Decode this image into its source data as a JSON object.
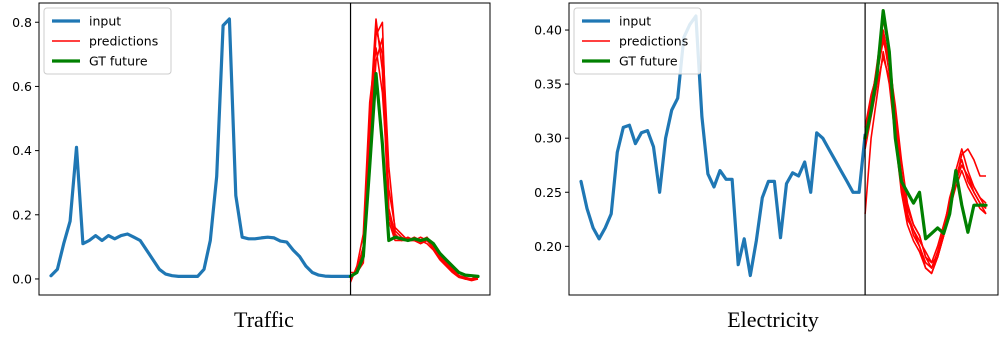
{
  "chart_data": [
    {
      "type": "line",
      "title": "Traffic",
      "ylim": [
        -0.05,
        0.86
      ],
      "yticks": [
        0.0,
        0.2,
        0.4,
        0.6,
        0.8
      ],
      "ytick_labels": [
        "0.0",
        "0.2",
        "0.4",
        "0.6",
        "0.8"
      ],
      "x_total": 68,
      "forecast_start": 47,
      "legend": {
        "placement": "upper-left",
        "entries": [
          "input",
          "predictions",
          "GT future"
        ]
      },
      "colors": {
        "input": "#1f77b4",
        "predictions": "#ff0000",
        "gt": "#008000"
      },
      "input": {
        "name": "input",
        "x": [
          0,
          1,
          2,
          3,
          4,
          5,
          6,
          7,
          8,
          9,
          10,
          11,
          12,
          13,
          14,
          15,
          16,
          17,
          18,
          19,
          20,
          21,
          22,
          23,
          24,
          25,
          26,
          27,
          28,
          29,
          30,
          31,
          32,
          33,
          34,
          35,
          36,
          37,
          38,
          39,
          40,
          41,
          42,
          43,
          44,
          45,
          46,
          47
        ],
        "values": [
          0.01,
          0.03,
          0.11,
          0.18,
          0.41,
          0.11,
          0.12,
          0.135,
          0.12,
          0.135,
          0.125,
          0.135,
          0.14,
          0.13,
          0.12,
          0.09,
          0.06,
          0.03,
          0.015,
          0.01,
          0.008,
          0.008,
          0.008,
          0.008,
          0.03,
          0.12,
          0.32,
          0.79,
          0.81,
          0.26,
          0.13,
          0.125,
          0.125,
          0.128,
          0.13,
          0.128,
          0.118,
          0.115,
          0.09,
          0.07,
          0.04,
          0.02,
          0.012,
          0.009,
          0.008,
          0.008,
          0.008,
          0.008
        ]
      },
      "gt_future": {
        "name": "GT future",
        "x": [
          47,
          48,
          49,
          50,
          51,
          52,
          53,
          54,
          55,
          56,
          57,
          58,
          59,
          60,
          61,
          62,
          63,
          64,
          65,
          66,
          67
        ],
        "values": [
          0.008,
          0.02,
          0.07,
          0.35,
          0.64,
          0.42,
          0.12,
          0.13,
          0.125,
          0.12,
          0.125,
          0.12,
          0.125,
          0.11,
          0.08,
          0.06,
          0.04,
          0.02,
          0.012,
          0.01,
          0.008
        ]
      },
      "predictions": [
        {
          "name": "predictions",
          "x": [
            47,
            48,
            49,
            50,
            51,
            52,
            53,
            54,
            55,
            56,
            57,
            58,
            59,
            60,
            61,
            62,
            63,
            64,
            65,
            66,
            67
          ],
          "values": [
            0.01,
            0.02,
            0.1,
            0.5,
            0.81,
            0.65,
            0.18,
            0.12,
            0.12,
            0.13,
            0.12,
            0.11,
            0.12,
            0.1,
            0.07,
            0.05,
            0.03,
            0.01,
            0.0,
            0.0,
            0.0
          ]
        },
        {
          "name": "predictions",
          "x": [
            47,
            48,
            49,
            50,
            51,
            52,
            53,
            54,
            55,
            56,
            57,
            58,
            59,
            60,
            61,
            62,
            63,
            64,
            65,
            66,
            67
          ],
          "values": [
            0.0,
            0.03,
            0.08,
            0.42,
            0.76,
            0.8,
            0.22,
            0.14,
            0.12,
            0.12,
            0.13,
            0.12,
            0.11,
            0.09,
            0.06,
            0.04,
            0.02,
            0.005,
            0.0,
            0.0,
            0.0
          ]
        },
        {
          "name": "predictions",
          "x": [
            47,
            48,
            49,
            50,
            51,
            52,
            53,
            54,
            55,
            56,
            57,
            58,
            59,
            60,
            61,
            62,
            63,
            64,
            65,
            66,
            67
          ],
          "values": [
            -0.01,
            0.04,
            0.14,
            0.55,
            0.72,
            0.58,
            0.28,
            0.16,
            0.14,
            0.12,
            0.12,
            0.13,
            0.12,
            0.11,
            0.08,
            0.05,
            0.035,
            0.01,
            0.005,
            0.0,
            0.01
          ]
        },
        {
          "name": "predictions",
          "x": [
            47,
            48,
            49,
            50,
            51,
            52,
            53,
            54,
            55,
            56,
            57,
            58,
            59,
            60,
            61,
            62,
            63,
            64,
            65,
            66,
            67
          ],
          "values": [
            0.02,
            0.02,
            0.05,
            0.38,
            0.68,
            0.75,
            0.35,
            0.15,
            0.13,
            0.12,
            0.12,
            0.12,
            0.13,
            0.1,
            0.07,
            0.045,
            0.025,
            0.01,
            0.0,
            -0.005,
            0.0
          ]
        },
        {
          "name": "predictions",
          "x": [
            47,
            48,
            49,
            50,
            51,
            52,
            53,
            54,
            55,
            56,
            57,
            58,
            59,
            60,
            61,
            62,
            63,
            64,
            65,
            66,
            67
          ],
          "values": [
            0.0,
            0.03,
            0.1,
            0.46,
            0.78,
            0.7,
            0.2,
            0.13,
            0.12,
            0.125,
            0.125,
            0.115,
            0.12,
            0.095,
            0.065,
            0.045,
            0.03,
            0.008,
            0.0,
            0.0,
            0.005
          ]
        }
      ]
    },
    {
      "type": "line",
      "title": "Electricity",
      "ylim": [
        0.155,
        0.425
      ],
      "yticks": [
        0.2,
        0.25,
        0.3,
        0.35,
        0.4
      ],
      "ytick_labels": [
        "0.20",
        "0.25",
        "0.30",
        "0.35",
        "0.40"
      ],
      "x_total": 68,
      "forecast_start": 47,
      "legend": {
        "placement": "upper-left",
        "entries": [
          "input",
          "predictions",
          "GT future"
        ]
      },
      "colors": {
        "input": "#1f77b4",
        "predictions": "#ff0000",
        "gt": "#008000"
      },
      "input": {
        "name": "input",
        "x": [
          0,
          1,
          2,
          3,
          4,
          5,
          6,
          7,
          8,
          9,
          10,
          11,
          12,
          13,
          14,
          15,
          16,
          17,
          18,
          19,
          20,
          21,
          22,
          23,
          24,
          25,
          26,
          27,
          28,
          29,
          30,
          31,
          32,
          33,
          34,
          35,
          36,
          37,
          38,
          39,
          40,
          41,
          42,
          43,
          44,
          45,
          46,
          47
        ],
        "values": [
          0.26,
          0.235,
          0.217,
          0.207,
          0.217,
          0.23,
          0.287,
          0.31,
          0.312,
          0.295,
          0.305,
          0.307,
          0.292,
          0.25,
          0.3,
          0.326,
          0.337,
          0.393,
          0.405,
          0.413,
          0.32,
          0.267,
          0.255,
          0.27,
          0.262,
          0.262,
          0.183,
          0.207,
          0.173,
          0.205,
          0.245,
          0.26,
          0.26,
          0.208,
          0.258,
          0.268,
          0.265,
          0.278,
          0.25,
          0.305,
          0.3,
          0.29,
          0.28,
          0.27,
          0.26,
          0.25,
          0.25,
          0.303
        ]
      },
      "gt_future": {
        "name": "GT future",
        "x": [
          47,
          48,
          49,
          50,
          51,
          52,
          53,
          54,
          55,
          56,
          57,
          58,
          59,
          60,
          61,
          62,
          63,
          64,
          65,
          66,
          67
        ],
        "values": [
          0.3,
          0.325,
          0.36,
          0.418,
          0.38,
          0.3,
          0.26,
          0.25,
          0.24,
          0.25,
          0.207,
          0.212,
          0.217,
          0.212,
          0.23,
          0.27,
          0.238,
          0.213,
          0.238,
          0.238,
          0.238
        ]
      },
      "predictions": [
        {
          "name": "predictions",
          "x": [
            47,
            48,
            49,
            50,
            51,
            52,
            53,
            54,
            55,
            56,
            57,
            58,
            59,
            60,
            61,
            62,
            63,
            64,
            65,
            66,
            67
          ],
          "values": [
            0.23,
            0.3,
            0.34,
            0.38,
            0.35,
            0.3,
            0.25,
            0.22,
            0.205,
            0.195,
            0.18,
            0.175,
            0.19,
            0.21,
            0.24,
            0.26,
            0.285,
            0.29,
            0.28,
            0.265,
            0.265
          ]
        },
        {
          "name": "predictions",
          "x": [
            47,
            48,
            49,
            50,
            51,
            52,
            53,
            54,
            55,
            56,
            57,
            58,
            59,
            60,
            61,
            62,
            63,
            64,
            65,
            66,
            67
          ],
          "values": [
            0.3,
            0.33,
            0.37,
            0.41,
            0.38,
            0.32,
            0.27,
            0.23,
            0.21,
            0.2,
            0.18,
            0.175,
            0.19,
            0.215,
            0.24,
            0.27,
            0.29,
            0.27,
            0.255,
            0.245,
            0.24
          ]
        },
        {
          "name": "predictions",
          "x": [
            47,
            48,
            49,
            50,
            51,
            52,
            53,
            54,
            55,
            56,
            57,
            58,
            59,
            60,
            61,
            62,
            63,
            64,
            65,
            66,
            67
          ],
          "values": [
            0.31,
            0.34,
            0.36,
            0.39,
            0.37,
            0.33,
            0.28,
            0.24,
            0.22,
            0.21,
            0.19,
            0.185,
            0.2,
            0.22,
            0.24,
            0.26,
            0.275,
            0.265,
            0.255,
            0.245,
            0.235
          ]
        },
        {
          "name": "predictions",
          "x": [
            47,
            48,
            49,
            50,
            51,
            52,
            53,
            54,
            55,
            56,
            57,
            58,
            59,
            60,
            61,
            62,
            63,
            64,
            65,
            66,
            67
          ],
          "values": [
            0.29,
            0.32,
            0.35,
            0.375,
            0.355,
            0.31,
            0.26,
            0.225,
            0.215,
            0.205,
            0.195,
            0.185,
            0.19,
            0.21,
            0.235,
            0.255,
            0.27,
            0.255,
            0.245,
            0.235,
            0.23
          ]
        },
        {
          "name": "predictions",
          "x": [
            47,
            48,
            49,
            50,
            51,
            52,
            53,
            54,
            55,
            56,
            57,
            58,
            59,
            60,
            61,
            62,
            63,
            64,
            65,
            66,
            67
          ],
          "values": [
            0.3,
            0.33,
            0.36,
            0.395,
            0.36,
            0.305,
            0.255,
            0.23,
            0.215,
            0.2,
            0.185,
            0.18,
            0.195,
            0.215,
            0.245,
            0.265,
            0.28,
            0.26,
            0.25,
            0.24,
            0.235
          ]
        },
        {
          "name": "predictions",
          "x": [
            47,
            48,
            49,
            50,
            51,
            52,
            53,
            54,
            55,
            56,
            57,
            58,
            59,
            60,
            61,
            62,
            63,
            64,
            65,
            66,
            67
          ],
          "values": [
            0.305,
            0.335,
            0.365,
            0.4,
            0.37,
            0.32,
            0.265,
            0.235,
            0.22,
            0.21,
            0.19,
            0.18,
            0.19,
            0.21,
            0.235,
            0.265,
            0.275,
            0.265,
            0.25,
            0.24,
            0.23
          ]
        }
      ]
    }
  ]
}
